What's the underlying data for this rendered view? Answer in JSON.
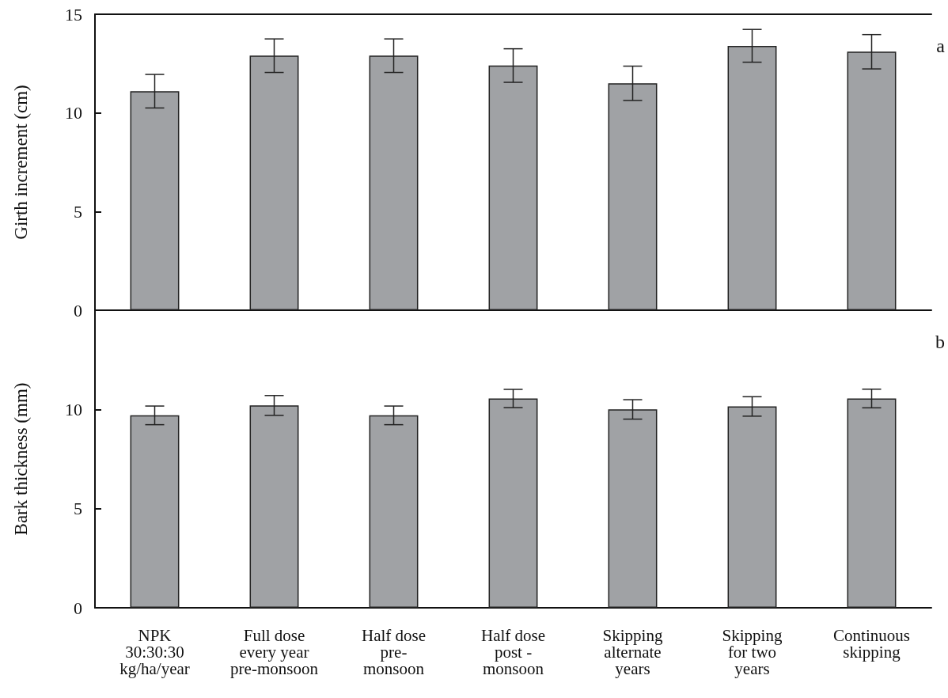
{
  "chart_data": [
    {
      "type": "bar",
      "ylabel": "Girth increment (cm)",
      "categories": [
        null,
        null,
        null,
        null,
        null,
        null,
        null
      ],
      "values": [
        11.1,
        12.9,
        12.9,
        12.4,
        11.5,
        13.4,
        13.1
      ],
      "errors": [
        0.85,
        0.85,
        0.85,
        0.85,
        0.87,
        0.83,
        0.87
      ],
      "color": "#a0a2a5",
      "ylim": [
        0,
        15
      ],
      "yticks": [
        0,
        5,
        10,
        15
      ],
      "grid": false,
      "tick_labels": "y",
      "annotations": [
        "a"
      ]
    },
    {
      "type": "bar",
      "ylabel": "Bark thickness (mm)",
      "categories": [
        "NPK\n30:30:30\nkg/ha/year",
        "Full dose\nevery year\npre-monsoon",
        "Half dose\npre-\nmonsoon",
        "Half dose\npost -\nmonsoon",
        "Skipping\nalternate\nyears",
        "Skipping\nfor two\nyears",
        "Continuous\nskipping"
      ],
      "values": [
        9.7,
        10.2,
        9.7,
        10.55,
        10.0,
        10.15,
        10.55
      ],
      "errors": [
        0.47,
        0.5,
        0.47,
        0.46,
        0.49,
        0.49,
        0.47
      ],
      "color": "#a0a2a5",
      "ylim": [
        0,
        15
      ],
      "yticks": [
        0,
        5,
        10
      ],
      "grid": false,
      "annotations": [
        "b"
      ]
    }
  ]
}
